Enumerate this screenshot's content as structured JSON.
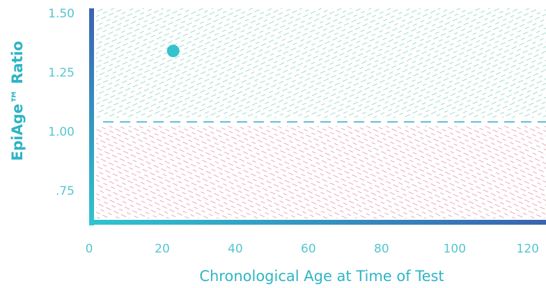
{
  "chart_data": {
    "type": "scatter",
    "title": "",
    "xlabel": "Chronological Age at Time of Test",
    "ylabel": "EpiAge™ Ratio",
    "xlim": [
      0,
      125
    ],
    "ylim": [
      0.62,
      1.52
    ],
    "x_ticks": [
      "0",
      "20",
      "40",
      "60",
      "80",
      "100",
      "120"
    ],
    "x_tick_values": [
      0,
      20,
      40,
      60,
      80,
      100,
      120
    ],
    "y_ticks": [
      ".75",
      "1.00",
      "1.25",
      "1.50"
    ],
    "y_tick_values": [
      0.75,
      1.0,
      1.25,
      1.5
    ],
    "threshold": 1.04,
    "points": [
      {
        "x": 23,
        "y": 1.34
      }
    ],
    "colors": {
      "point": "#35c2cf",
      "upper_hatch": "#9fdcc9",
      "lower_hatch": "#eaa9b8",
      "threshold_line": "#56bcd6",
      "axis_top": "#3a63b0",
      "axis_bottom": "#2fc4cf",
      "tick_text": "#55c6cf",
      "axis_title": "#2fb4c4"
    },
    "grid": false,
    "legend": "none"
  }
}
